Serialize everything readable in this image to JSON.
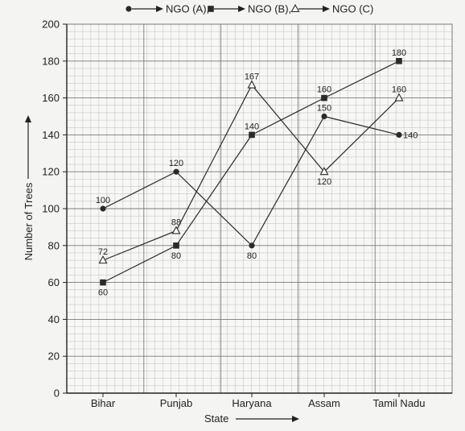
{
  "chart_data": {
    "type": "line",
    "categories": [
      "Bihar",
      "Punjab",
      "Haryana",
      "Assam",
      "Tamil Nadu"
    ],
    "series": [
      {
        "name": "NGO (A),",
        "marker": "circle",
        "values": [
          100,
          120,
          80,
          150,
          140
        ]
      },
      {
        "name": "NGO (B),",
        "marker": "square",
        "values": [
          60,
          80,
          140,
          160,
          180
        ]
      },
      {
        "name": "NGO (C)",
        "marker": "triangle",
        "values": [
          72,
          88,
          167,
          120,
          160
        ]
      }
    ],
    "xlabel": "State",
    "ylabel": "Number of Trees",
    "ylim": [
      0,
      200
    ],
    "yticks": [
      0,
      20,
      40,
      60,
      80,
      100,
      120,
      140,
      160,
      180,
      200
    ],
    "grid": true,
    "legend_position": "top",
    "colors": {
      "line": "#2a2a2a",
      "grid_minor": "#bdbdbd",
      "grid_major": "#7a7a7a",
      "background": "#f4f4f2"
    }
  }
}
